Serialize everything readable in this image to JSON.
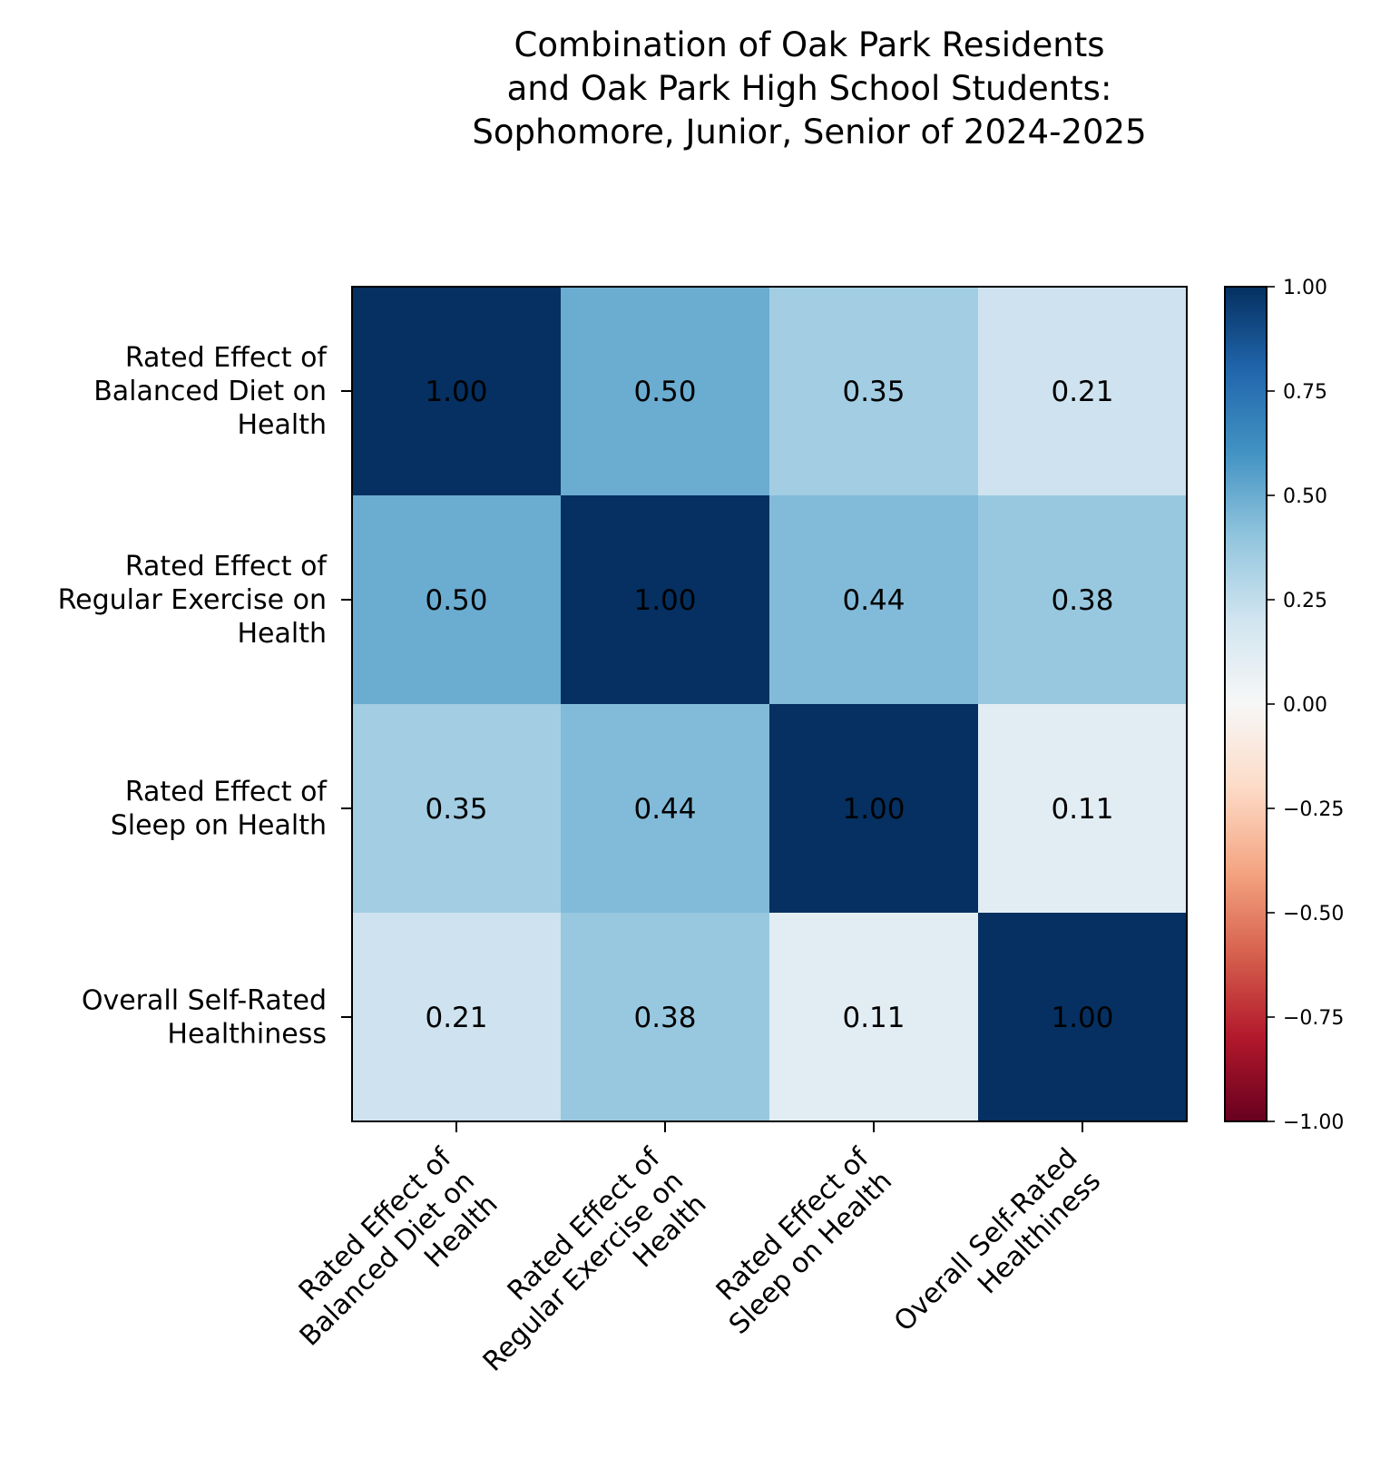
{
  "chart_data": {
    "type": "heatmap",
    "title": [
      "Combination of Oak Park Residents",
      "and Oak Park High School Students:",
      "Sophomore, Junior, Senior of 2024-2025"
    ],
    "x_labels": [
      [
        "Rated Effect of",
        "Balanced Diet on",
        "Health"
      ],
      [
        "Rated Effect of",
        "Regular Exercise on",
        "Health"
      ],
      [
        "Rated Effect of",
        "Sleep on Health"
      ],
      [
        "Overall Self-Rated",
        "Healthiness"
      ]
    ],
    "y_labels": [
      [
        "Rated Effect of",
        "Balanced Diet on",
        "Health"
      ],
      [
        "Rated Effect of",
        "Regular Exercise on",
        "Health"
      ],
      [
        "Rated Effect of",
        "Sleep on Health"
      ],
      [
        "Overall Self-Rated",
        "Healthiness"
      ]
    ],
    "values": [
      [
        1.0,
        0.5,
        0.35,
        0.21
      ],
      [
        0.5,
        1.0,
        0.44,
        0.38
      ],
      [
        0.35,
        0.44,
        1.0,
        0.11
      ],
      [
        0.21,
        0.38,
        0.11,
        1.0
      ]
    ],
    "cell_labels": [
      [
        "1.00",
        "0.50",
        "0.35",
        "0.21"
      ],
      [
        "0.50",
        "1.00",
        "0.44",
        "0.38"
      ],
      [
        "0.35",
        "0.44",
        "1.00",
        "0.11"
      ],
      [
        "0.21",
        "0.38",
        "0.11",
        "1.00"
      ]
    ],
    "colormap": "RdBu",
    "vmin": -1,
    "vmax": 1,
    "colorbar": {
      "ticks": [
        1.0,
        0.75,
        0.5,
        0.25,
        0.0,
        -0.25,
        -0.5,
        -0.75,
        -1.0
      ],
      "tick_labels": [
        "1.00",
        "0.75",
        "0.50",
        "0.25",
        "0.00",
        "−0.25",
        "−0.50",
        "−0.75",
        "−1.00"
      ],
      "position": "right"
    },
    "colormap_stops": [
      "#67001f",
      "#b2182b",
      "#d6604d",
      "#f4a582",
      "#fddbc7",
      "#f7f7f7",
      "#d1e5f0",
      "#92c5de",
      "#4393c3",
      "#2166ac",
      "#053061"
    ]
  }
}
